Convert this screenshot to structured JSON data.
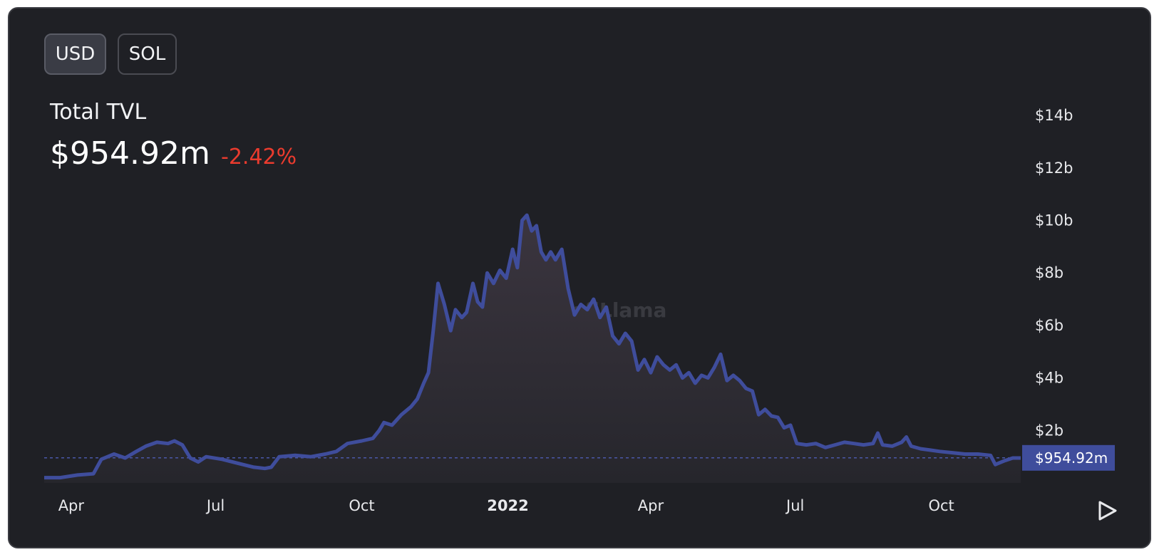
{
  "toggle": {
    "options": [
      "USD",
      "SOL"
    ],
    "selected": "USD"
  },
  "header": {
    "title": "Total TVL",
    "value": "$954.92m",
    "change": "-2.42%"
  },
  "watermark": "DefiLlama",
  "colors": {
    "line": "#3f4d9c",
    "area_top": "#3b353f",
    "negative": "#ea3b2e",
    "background": "#1f2025"
  },
  "icons": {
    "play": "play-icon"
  },
  "chart_data": {
    "type": "area",
    "title": "",
    "xlabel": "",
    "ylabel": "",
    "x_ticks": [
      {
        "label": "Apr",
        "date": "2021-04-01"
      },
      {
        "label": "Jul",
        "date": "2021-07-01"
      },
      {
        "label": "Oct",
        "date": "2021-10-01"
      },
      {
        "label": "2022",
        "date": "2022-01-01",
        "bold": true
      },
      {
        "label": "Apr",
        "date": "2022-04-01"
      },
      {
        "label": "Jul",
        "date": "2022-07-01"
      },
      {
        "label": "Oct",
        "date": "2022-10-01"
      }
    ],
    "y_ticks": [
      {
        "label": "$2b",
        "value": 2
      },
      {
        "label": "$4b",
        "value": 4
      },
      {
        "label": "$6b",
        "value": 6
      },
      {
        "label": "$8b",
        "value": 8
      },
      {
        "label": "$10b",
        "value": 10
      },
      {
        "label": "$12b",
        "value": 12
      },
      {
        "label": "$14b",
        "value": 14
      }
    ],
    "unit": "billion USD",
    "xlim": [
      "2021-03-15",
      "2022-11-20"
    ],
    "ylim": [
      0,
      14.6
    ],
    "current": {
      "value": 0.95492,
      "label": "$954.92m"
    },
    "series": [
      {
        "values": [
          [
            "2021-03-15",
            0.2
          ],
          [
            "2021-03-25",
            0.2
          ],
          [
            "2021-04-05",
            0.3
          ],
          [
            "2021-04-15",
            0.35
          ],
          [
            "2021-04-20",
            0.9
          ],
          [
            "2021-04-28",
            1.1
          ],
          [
            "2021-05-05",
            0.95
          ],
          [
            "2021-05-12",
            1.2
          ],
          [
            "2021-05-18",
            1.4
          ],
          [
            "2021-05-25",
            1.55
          ],
          [
            "2021-06-01",
            1.5
          ],
          [
            "2021-06-05",
            1.6
          ],
          [
            "2021-06-10",
            1.45
          ],
          [
            "2021-06-15",
            0.95
          ],
          [
            "2021-06-20",
            0.8
          ],
          [
            "2021-06-25",
            1.0
          ],
          [
            "2021-07-05",
            0.9
          ],
          [
            "2021-07-15",
            0.75
          ],
          [
            "2021-07-25",
            0.6
          ],
          [
            "2021-08-01",
            0.55
          ],
          [
            "2021-08-05",
            0.6
          ],
          [
            "2021-08-10",
            1.0
          ],
          [
            "2021-08-20",
            1.05
          ],
          [
            "2021-08-30",
            1.0
          ],
          [
            "2021-09-08",
            1.1
          ],
          [
            "2021-09-15",
            1.2
          ],
          [
            "2021-09-22",
            1.5
          ],
          [
            "2021-10-01",
            1.6
          ],
          [
            "2021-10-08",
            1.7
          ],
          [
            "2021-10-12",
            2.0
          ],
          [
            "2021-10-15",
            2.3
          ],
          [
            "2021-10-20",
            2.2
          ],
          [
            "2021-10-26",
            2.6
          ],
          [
            "2021-11-01",
            2.9
          ],
          [
            "2021-11-05",
            3.2
          ],
          [
            "2021-11-09",
            3.8
          ],
          [
            "2021-11-12",
            4.2
          ],
          [
            "2021-11-15",
            5.8
          ],
          [
            "2021-11-18",
            7.6
          ],
          [
            "2021-11-22",
            6.8
          ],
          [
            "2021-11-26",
            5.8
          ],
          [
            "2021-11-29",
            6.6
          ],
          [
            "2021-12-03",
            6.3
          ],
          [
            "2021-12-06",
            6.5
          ],
          [
            "2021-12-10",
            7.6
          ],
          [
            "2021-12-13",
            6.9
          ],
          [
            "2021-12-16",
            6.7
          ],
          [
            "2021-12-19",
            8.0
          ],
          [
            "2021-12-23",
            7.6
          ],
          [
            "2021-12-27",
            8.1
          ],
          [
            "2021-12-31",
            7.8
          ],
          [
            "2022-01-04",
            8.9
          ],
          [
            "2022-01-07",
            8.2
          ],
          [
            "2022-01-10",
            10.0
          ],
          [
            "2022-01-13",
            10.2
          ],
          [
            "2022-01-16",
            9.6
          ],
          [
            "2022-01-19",
            9.8
          ],
          [
            "2022-01-22",
            8.8
          ],
          [
            "2022-01-25",
            8.5
          ],
          [
            "2022-01-28",
            8.8
          ],
          [
            "2022-01-31",
            8.5
          ],
          [
            "2022-02-04",
            8.9
          ],
          [
            "2022-02-08",
            7.4
          ],
          [
            "2022-02-12",
            6.4
          ],
          [
            "2022-02-16",
            6.8
          ],
          [
            "2022-02-20",
            6.6
          ],
          [
            "2022-02-24",
            7.0
          ],
          [
            "2022-02-28",
            6.3
          ],
          [
            "2022-03-04",
            6.7
          ],
          [
            "2022-03-08",
            5.6
          ],
          [
            "2022-03-12",
            5.3
          ],
          [
            "2022-03-16",
            5.7
          ],
          [
            "2022-03-20",
            5.4
          ],
          [
            "2022-03-24",
            4.3
          ],
          [
            "2022-03-28",
            4.7
          ],
          [
            "2022-04-01",
            4.2
          ],
          [
            "2022-04-05",
            4.8
          ],
          [
            "2022-04-09",
            4.5
          ],
          [
            "2022-04-13",
            4.3
          ],
          [
            "2022-04-17",
            4.5
          ],
          [
            "2022-04-21",
            4.0
          ],
          [
            "2022-04-25",
            4.2
          ],
          [
            "2022-04-29",
            3.8
          ],
          [
            "2022-05-03",
            4.1
          ],
          [
            "2022-05-07",
            4.0
          ],
          [
            "2022-05-11",
            4.4
          ],
          [
            "2022-05-15",
            4.9
          ],
          [
            "2022-05-19",
            3.9
          ],
          [
            "2022-05-23",
            4.1
          ],
          [
            "2022-05-27",
            3.9
          ],
          [
            "2022-05-31",
            3.6
          ],
          [
            "2022-06-04",
            3.5
          ],
          [
            "2022-06-08",
            2.6
          ],
          [
            "2022-06-12",
            2.8
          ],
          [
            "2022-06-16",
            2.55
          ],
          [
            "2022-06-20",
            2.5
          ],
          [
            "2022-06-24",
            2.1
          ],
          [
            "2022-06-28",
            2.2
          ],
          [
            "2022-07-02",
            1.5
          ],
          [
            "2022-07-08",
            1.45
          ],
          [
            "2022-07-14",
            1.5
          ],
          [
            "2022-07-20",
            1.35
          ],
          [
            "2022-07-26",
            1.45
          ],
          [
            "2022-08-01",
            1.55
          ],
          [
            "2022-08-07",
            1.5
          ],
          [
            "2022-08-13",
            1.45
          ],
          [
            "2022-08-19",
            1.5
          ],
          [
            "2022-08-22",
            1.9
          ],
          [
            "2022-08-25",
            1.45
          ],
          [
            "2022-08-31",
            1.4
          ],
          [
            "2022-09-06",
            1.55
          ],
          [
            "2022-09-09",
            1.75
          ],
          [
            "2022-09-12",
            1.4
          ],
          [
            "2022-09-18",
            1.3
          ],
          [
            "2022-09-24",
            1.25
          ],
          [
            "2022-09-30",
            1.2
          ],
          [
            "2022-10-08",
            1.15
          ],
          [
            "2022-10-16",
            1.1
          ],
          [
            "2022-10-24",
            1.1
          ],
          [
            "2022-11-01",
            1.05
          ],
          [
            "2022-11-04",
            0.7
          ],
          [
            "2022-11-10",
            0.85
          ],
          [
            "2022-11-15",
            0.95
          ],
          [
            "2022-11-20",
            0.95
          ]
        ]
      }
    ]
  }
}
